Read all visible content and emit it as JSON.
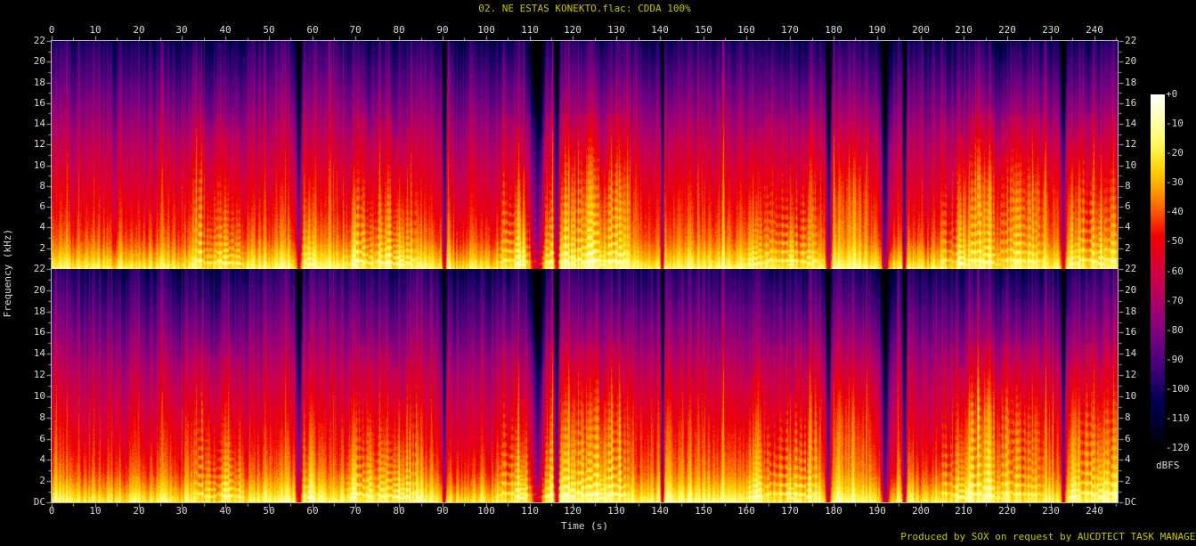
{
  "title": "02. NE ESTAS KONEKTO.flac: CDDA 100%",
  "footer": "Produced by SOX on request by AUCDTECT TASK MANAGER",
  "colors": {
    "background": "#000000",
    "title_text": "#c6c600",
    "footer_text": "#c6c600",
    "axis_text": "#d8d8d8",
    "axis_line": "#b4b4b4"
  },
  "chart_data": {
    "type": "heatmap",
    "subtype": "stereo-audio-spectrogram",
    "renderer": "SoX spectrogram",
    "title": "02. NE ESTAS KONEKTO.flac: CDDA 100%",
    "xlabel": "Time (s)",
    "ylabel": "Frequency (kHz)",
    "zlabel": "dBFS",
    "channels": [
      "left",
      "right"
    ],
    "x_range_s": [
      0,
      245.5
    ],
    "x_major_ticks_s": [
      0,
      10,
      20,
      30,
      40,
      50,
      60,
      70,
      80,
      90,
      100,
      110,
      120,
      130,
      140,
      150,
      160,
      170,
      180,
      190,
      200,
      210,
      220,
      230,
      240
    ],
    "x_minor_tick_step_s": 5,
    "x_ticks_shown_top_and_bottom": true,
    "y_range_khz": [
      0,
      22
    ],
    "y_major_ticks_khz": [
      22,
      20,
      18,
      16,
      14,
      12,
      10,
      8,
      6,
      4,
      2,
      0
    ],
    "y_tick_labels": [
      "22",
      "20",
      "18",
      "16",
      "14",
      "12",
      "10",
      "8",
      "6",
      "4",
      "2",
      "DC"
    ],
    "y_dc_label": "DC",
    "y_labels_shown_left_and_right": true,
    "z_range_db": [
      -120,
      0
    ],
    "z_major_ticks_db": [
      0,
      -10,
      -20,
      -30,
      -40,
      -50,
      -60,
      -70,
      -80,
      -90,
      -100,
      -110,
      -120
    ],
    "z_tick_labels": [
      "+0",
      "-10",
      "-20",
      "-30",
      "-40",
      "-50",
      "-60",
      "-70",
      "-80",
      "-90",
      "-100",
      "-110",
      "-120"
    ],
    "legend_position": "right colorbar",
    "grid": false,
    "palette": "sox-default: black > dark blue > purple > magenta > red > orange > yellow > white",
    "texture": {
      "description": "Dense full-band music for ~245 s; near-0 dBFS yellow/white energy below ~2 kHz, red/orange 2-10 kHz, purple/blue above 14 kHz, strong vertical beat striping, dotted harmonic ladders, a few quiet vertical gaps; both channels nearly identical.",
      "quiet_gaps_s": [
        [
          56.8,
          1.2
        ],
        [
          90.3,
          0.7
        ],
        [
          111.8,
          2.8
        ],
        [
          116.2,
          0.9
        ],
        [
          140.5,
          0.6
        ],
        [
          178.8,
          1.0
        ],
        [
          191.8,
          1.4
        ],
        [
          196.2,
          0.8
        ],
        [
          232.8,
          1.0
        ]
      ],
      "ladder_regions_s": [
        [
          33,
          44
        ],
        [
          57,
          60
        ],
        [
          68,
          84
        ],
        [
          103,
          133
        ],
        [
          160,
          176
        ],
        [
          205,
          228
        ],
        [
          234,
          245
        ]
      ],
      "loud_baseline_below_khz": 2
    }
  }
}
